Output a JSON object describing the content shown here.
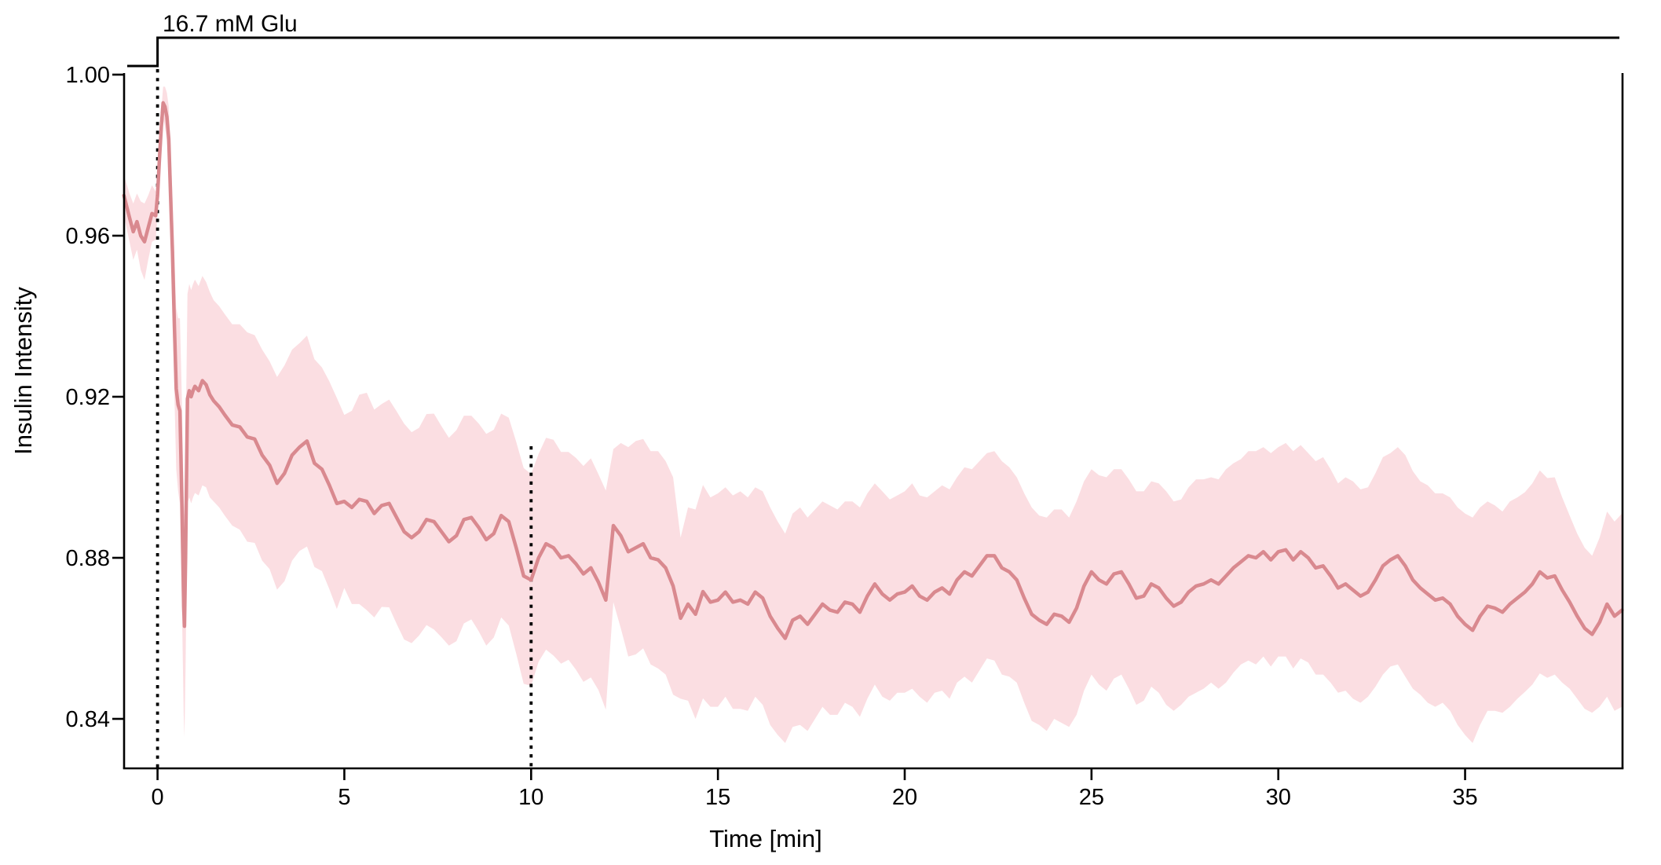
{
  "stimulus": {
    "label": "16.7 mM Glu",
    "start_min": 0,
    "end_min": 39.1
  },
  "events": {
    "dotted_marker_1_min": 0,
    "dotted_marker_2_min": 10
  },
  "axes": {
    "x": {
      "label": "Time [min]",
      "tick_labels": [
        "0",
        "5",
        "10",
        "15",
        "20",
        "25",
        "30",
        "35"
      ],
      "tick_values": [
        0,
        5,
        10,
        15,
        20,
        25,
        30,
        35
      ],
      "range": [
        -0.9,
        39.2
      ]
    },
    "y": {
      "label": "Insulin Intensity",
      "tick_labels": [
        "1.00",
        "0.96",
        "0.92",
        "0.88",
        "0.84"
      ],
      "tick_values": [
        1.0,
        0.96,
        0.92,
        0.88,
        0.84
      ],
      "range": [
        0.828,
        1.0
      ]
    }
  },
  "colors": {
    "mean_line": "#d9898f",
    "band_fill": "#fbdee2",
    "axis": "#000000",
    "event_lines": "#000000",
    "bracket": "#000000"
  },
  "chart_data": {
    "type": "line",
    "title": "",
    "xlabel": "Time [min]",
    "ylabel": "Insulin Intensity",
    "xlim": [
      -0.9,
      39.2
    ],
    "ylim": [
      0.828,
      1.0
    ],
    "grid": false,
    "legend": "none",
    "annotations": [
      "16.7 mM Glu bracket from t=0 to end",
      "dotted vertical lines at t=0 and t=10"
    ],
    "band": "mean ± band_half_width",
    "x": [
      -0.9,
      -0.75,
      -0.65,
      -0.55,
      -0.45,
      -0.35,
      -0.25,
      -0.15,
      -0.05,
      0,
      0.05,
      0.1,
      0.15,
      0.2,
      0.25,
      0.3,
      0.35,
      0.4,
      0.45,
      0.5,
      0.55,
      0.6,
      0.65,
      0.7,
      0.72,
      0.75,
      0.8,
      0.85,
      0.9,
      0.95,
      1,
      1.1,
      1.2,
      1.3,
      1.4,
      1.5,
      1.65,
      1.8,
      2,
      2.2,
      2.4,
      2.6,
      2.8,
      3,
      3.2,
      3.4,
      3.6,
      3.8,
      4,
      4.2,
      4.4,
      4.6,
      4.8,
      5,
      5.2,
      5.4,
      5.6,
      5.8,
      6,
      6.2,
      6.4,
      6.6,
      6.8,
      7,
      7.2,
      7.4,
      7.6,
      7.8,
      8,
      8.2,
      8.4,
      8.6,
      8.8,
      9,
      9.2,
      9.4,
      9.6,
      9.8,
      10,
      10.2,
      10.4,
      10.6,
      10.8,
      11,
      11.2,
      11.4,
      11.6,
      11.8,
      12,
      12.2,
      12.4,
      12.6,
      12.8,
      13,
      13.2,
      13.4,
      13.6,
      13.8,
      14,
      14.2,
      14.4,
      14.6,
      14.8,
      15,
      15.2,
      15.4,
      15.6,
      15.8,
      16,
      16.2,
      16.4,
      16.6,
      16.8,
      17,
      17.2,
      17.4,
      17.6,
      17.8,
      18,
      18.2,
      18.4,
      18.6,
      18.8,
      19,
      19.2,
      19.4,
      19.6,
      19.8,
      20,
      20.2,
      20.4,
      20.6,
      20.8,
      21,
      21.2,
      21.4,
      21.6,
      21.8,
      22,
      22.2,
      22.4,
      22.6,
      22.8,
      23,
      23.2,
      23.4,
      23.6,
      23.8,
      24,
      24.2,
      24.4,
      24.6,
      24.8,
      25,
      25.2,
      25.4,
      25.6,
      25.8,
      26,
      26.2,
      26.4,
      26.6,
      26.8,
      27,
      27.2,
      27.4,
      27.6,
      27.8,
      28,
      28.2,
      28.4,
      28.6,
      28.8,
      29,
      29.2,
      29.4,
      29.6,
      29.8,
      30,
      30.2,
      30.4,
      30.6,
      30.8,
      31,
      31.2,
      31.4,
      31.6,
      31.8,
      32,
      32.2,
      32.4,
      32.6,
      32.8,
      33,
      33.2,
      33.4,
      33.6,
      33.8,
      34,
      34.2,
      34.4,
      34.6,
      34.8,
      35,
      35.2,
      35.4,
      35.6,
      35.8,
      36,
      36.2,
      36.4,
      36.6,
      36.8,
      37,
      37.2,
      37.4,
      37.6,
      37.8,
      38,
      38.2,
      38.4,
      38.6,
      38.8,
      39,
      39.2
    ],
    "series": [
      {
        "name": "mean insulin intensity",
        "values": [
          0.97,
          0.9645,
          0.961,
          0.9635,
          0.96,
          0.9585,
          0.962,
          0.9655,
          0.965,
          0.97,
          0.979,
          0.987,
          0.993,
          0.992,
          0.9895,
          0.984,
          0.97,
          0.956,
          0.938,
          0.922,
          0.918,
          0.9165,
          0.895,
          0.868,
          0.863,
          0.88,
          0.9195,
          0.9215,
          0.92,
          0.9215,
          0.9226,
          0.9215,
          0.924,
          0.923,
          0.9205,
          0.919,
          0.9175,
          0.9155,
          0.913,
          0.9125,
          0.91,
          0.9095,
          0.9055,
          0.903,
          0.8985,
          0.901,
          0.9055,
          0.9075,
          0.909,
          0.9035,
          0.902,
          0.898,
          0.8935,
          0.894,
          0.8925,
          0.8945,
          0.894,
          0.891,
          0.893,
          0.8935,
          0.89,
          0.8865,
          0.885,
          0.8865,
          0.8895,
          0.889,
          0.8865,
          0.884,
          0.8855,
          0.8895,
          0.89,
          0.8875,
          0.8845,
          0.886,
          0.8905,
          0.889,
          0.8825,
          0.8755,
          0.8745,
          0.88,
          0.8835,
          0.8825,
          0.88,
          0.8805,
          0.8785,
          0.876,
          0.8775,
          0.874,
          0.8695,
          0.888,
          0.8855,
          0.8815,
          0.8825,
          0.8835,
          0.88,
          0.8795,
          0.8775,
          0.873,
          0.865,
          0.8685,
          0.866,
          0.8716,
          0.869,
          0.8695,
          0.8715,
          0.869,
          0.8695,
          0.8685,
          0.8715,
          0.87,
          0.8655,
          0.8625,
          0.86,
          0.8645,
          0.8655,
          0.8635,
          0.866,
          0.8685,
          0.867,
          0.8665,
          0.869,
          0.8685,
          0.8665,
          0.8705,
          0.8735,
          0.871,
          0.8695,
          0.871,
          0.8715,
          0.873,
          0.8705,
          0.8695,
          0.8715,
          0.8725,
          0.871,
          0.8745,
          0.8765,
          0.8755,
          0.878,
          0.8805,
          0.8805,
          0.8775,
          0.8765,
          0.8745,
          0.87,
          0.866,
          0.8645,
          0.8635,
          0.866,
          0.8655,
          0.864,
          0.8675,
          0.873,
          0.8765,
          0.8745,
          0.8735,
          0.876,
          0.8765,
          0.8735,
          0.87,
          0.8705,
          0.8735,
          0.8725,
          0.87,
          0.868,
          0.869,
          0.8715,
          0.873,
          0.8735,
          0.8745,
          0.8735,
          0.8755,
          0.8775,
          0.879,
          0.8805,
          0.88,
          0.8815,
          0.8795,
          0.8815,
          0.882,
          0.8795,
          0.8815,
          0.88,
          0.8775,
          0.878,
          0.8755,
          0.8725,
          0.8735,
          0.872,
          0.8705,
          0.8715,
          0.8745,
          0.878,
          0.8795,
          0.8805,
          0.878,
          0.8745,
          0.8725,
          0.871,
          0.8695,
          0.87,
          0.8685,
          0.8655,
          0.8635,
          0.862,
          0.8655,
          0.868,
          0.8675,
          0.8665,
          0.8685,
          0.87,
          0.8715,
          0.8735,
          0.8765,
          0.875,
          0.8755,
          0.872,
          0.869,
          0.8655,
          0.8625,
          0.861,
          0.864,
          0.8685,
          0.8655,
          0.867
        ]
      },
      {
        "name": "band half width (±, shaded)",
        "values": [
          0.005,
          0.006,
          0.007,
          0.007,
          0.0085,
          0.0095,
          0.008,
          0.007,
          0.006,
          0.005,
          0.0045,
          0.004,
          0.004,
          0.005,
          0.006,
          0.008,
          0.011,
          0.014,
          0.017,
          0.02,
          0.0215,
          0.023,
          0.025,
          0.027,
          0.0275,
          0.027,
          0.026,
          0.0265,
          0.0265,
          0.0265,
          0.0265,
          0.026,
          0.026,
          0.0255,
          0.0255,
          0.025,
          0.025,
          0.025,
          0.025,
          0.0255,
          0.026,
          0.0258,
          0.0262,
          0.0258,
          0.0264,
          0.0268,
          0.0262,
          0.0258,
          0.0262,
          0.0258,
          0.0253,
          0.0258,
          0.0262,
          0.0215,
          0.024,
          0.026,
          0.027,
          0.0258,
          0.0252,
          0.0258,
          0.0264,
          0.0268,
          0.0262,
          0.0258,
          0.0262,
          0.0268,
          0.0262,
          0.0258,
          0.0262,
          0.0258,
          0.0253,
          0.0258,
          0.0263,
          0.0258,
          0.0253,
          0.0258,
          0.0263,
          0.0268,
          0.0263,
          0.0258,
          0.0263,
          0.0268,
          0.0263,
          0.0258,
          0.0263,
          0.0268,
          0.0272,
          0.0268,
          0.0272,
          0.019,
          0.023,
          0.026,
          0.0265,
          0.026,
          0.0265,
          0.027,
          0.0265,
          0.027,
          0.02,
          0.024,
          0.026,
          0.0265,
          0.026,
          0.0265,
          0.026,
          0.0265,
          0.027,
          0.0265,
          0.026,
          0.0265,
          0.027,
          0.0265,
          0.026,
          0.0265,
          0.027,
          0.0265,
          0.026,
          0.0255,
          0.026,
          0.0255,
          0.025,
          0.0255,
          0.026,
          0.0255,
          0.025,
          0.0255,
          0.025,
          0.0245,
          0.025,
          0.0255,
          0.025,
          0.0255,
          0.025,
          0.0255,
          0.026,
          0.0255,
          0.026,
          0.0265,
          0.026,
          0.0255,
          0.026,
          0.0265,
          0.026,
          0.0255,
          0.026,
          0.0265,
          0.026,
          0.0265,
          0.026,
          0.0265,
          0.026,
          0.0265,
          0.026,
          0.0255,
          0.026,
          0.0265,
          0.026,
          0.0255,
          0.026,
          0.0265,
          0.026,
          0.0255,
          0.026,
          0.0265,
          0.026,
          0.0255,
          0.026,
          0.0265,
          0.026,
          0.0255,
          0.026,
          0.0265,
          0.026,
          0.0255,
          0.026,
          0.0265,
          0.026,
          0.0265,
          0.026,
          0.0265,
          0.027,
          0.0265,
          0.026,
          0.0265,
          0.027,
          0.0265,
          0.026,
          0.0265,
          0.027,
          0.0265,
          0.026,
          0.0265,
          0.027,
          0.0265,
          0.027,
          0.0275,
          0.027,
          0.0265,
          0.027,
          0.0265,
          0.026,
          0.0265,
          0.027,
          0.0275,
          0.028,
          0.027,
          0.026,
          0.0255,
          0.025,
          0.0255,
          0.025,
          0.0248,
          0.025,
          0.0252,
          0.0248,
          0.0245,
          0.023,
          0.0215,
          0.0205,
          0.02,
          0.0195,
          0.021,
          0.023,
          0.0235,
          0.024
        ]
      }
    ]
  }
}
